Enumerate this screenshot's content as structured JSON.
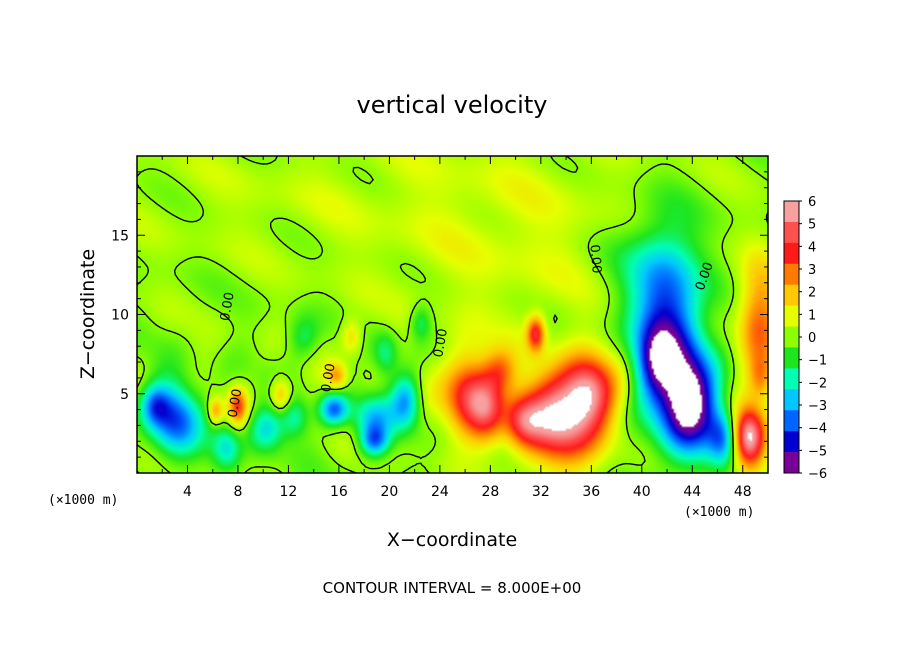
{
  "chart_data": {
    "type": "heatmap",
    "title": "vertical velocity",
    "xlabel": "X−coordinate",
    "ylabel": "Z−coordinate",
    "x_unit": "(×1000 m)",
    "y_unit": "(×1000 m)",
    "footer": "CONTOUR INTERVAL = 8.000E+00",
    "xlim": [
      0,
      50
    ],
    "ylim": [
      0,
      20
    ],
    "x_ticks": [
      4,
      8,
      12,
      16,
      20,
      24,
      28,
      32,
      36,
      40,
      44,
      48
    ],
    "y_ticks": [
      5,
      10,
      15
    ],
    "colorbar": {
      "ticks": [
        6,
        5,
        4,
        3,
        2,
        1,
        0,
        -1,
        -2,
        -3,
        -4,
        -5,
        -6
      ],
      "tick_labels": [
        "6",
        "5",
        "4",
        "3",
        "2",
        "1",
        "0",
        "−1",
        "−2",
        "−3",
        "−4",
        "−5",
        "−6"
      ],
      "colors": [
        "#f7a0a0",
        "#ff5050",
        "#ff1a1a",
        "#ff7a00",
        "#ffc800",
        "#e6ff00",
        "#8cff00",
        "#1ee61e",
        "#00ffb4",
        "#00c8ff",
        "#0064ff",
        "#0000d2",
        "#780096"
      ]
    },
    "contour_labels": [
      {
        "text": "0.00",
        "x": 7.2,
        "z": 10.5,
        "angle": -80
      },
      {
        "text": "0.00",
        "x": 7.8,
        "z": 4.4,
        "angle": -80
      },
      {
        "text": "0.00",
        "x": 15.2,
        "z": 6.0,
        "angle": -80
      },
      {
        "text": "0.00",
        "x": 24.1,
        "z": 8.2,
        "angle": -80
      },
      {
        "text": "0.00",
        "x": 36.3,
        "z": 13.5,
        "angle": 85
      },
      {
        "text": "0.00",
        "x": 45.0,
        "z": 12.4,
        "angle": -70
      }
    ],
    "features": [
      {
        "x": 3.0,
        "z": 3.4,
        "sx": 1.4,
        "sz": 1.6,
        "w": -4.2
      },
      {
        "x": 1.4,
        "z": 4.3,
        "sx": 0.8,
        "sz": 0.9,
        "w": -2.5
      },
      {
        "x": 8.0,
        "z": 4.2,
        "sx": 0.5,
        "sz": 0.8,
        "w": 3.2
      },
      {
        "x": 6.2,
        "z": 3.9,
        "sx": 0.4,
        "sz": 0.6,
        "w": 2.5
      },
      {
        "x": 7.1,
        "z": 1.6,
        "sx": 0.8,
        "sz": 1.0,
        "w": -2.3
      },
      {
        "x": 11.4,
        "z": 4.9,
        "sx": 0.6,
        "sz": 0.8,
        "w": 2.6
      },
      {
        "x": 10.2,
        "z": 2.8,
        "sx": 1.0,
        "sz": 1.0,
        "w": -2.5
      },
      {
        "x": 12.5,
        "z": 3.5,
        "sx": 0.8,
        "sz": 0.9,
        "w": -2.0
      },
      {
        "x": 15.6,
        "z": 4.0,
        "sx": 0.8,
        "sz": 0.7,
        "w": -3.8
      },
      {
        "x": 15.8,
        "z": 6.1,
        "sx": 0.6,
        "sz": 0.6,
        "w": 2.5
      },
      {
        "x": 18.7,
        "z": 3.5,
        "sx": 1.2,
        "sz": 1.0,
        "w": -2.6
      },
      {
        "x": 18.8,
        "z": 2.0,
        "sx": 0.8,
        "sz": 0.7,
        "w": -3.5
      },
      {
        "x": 21.3,
        "z": 4.6,
        "sx": 0.8,
        "sz": 1.2,
        "w": -3.2
      },
      {
        "x": 19.7,
        "z": 7.5,
        "sx": 0.7,
        "sz": 1.0,
        "w": -1.9
      },
      {
        "x": 17.0,
        "z": 8.6,
        "sx": 0.6,
        "sz": 0.8,
        "w": 1.8
      },
      {
        "x": 13.2,
        "z": 8.5,
        "sx": 0.9,
        "sz": 1.0,
        "w": -1.5
      },
      {
        "x": 22.5,
        "z": 9.5,
        "sx": 0.6,
        "sz": 0.8,
        "w": -1.6
      },
      {
        "x": 26.2,
        "z": 5.0,
        "sx": 1.3,
        "sz": 1.8,
        "w": 4.4
      },
      {
        "x": 27.8,
        "z": 4.0,
        "sx": 1.0,
        "sz": 1.6,
        "w": 3.2
      },
      {
        "x": 28.8,
        "z": 6.5,
        "sx": 0.9,
        "sz": 0.9,
        "w": 2.0
      },
      {
        "x": 31.6,
        "z": 8.8,
        "sx": 0.5,
        "sz": 0.8,
        "w": 4.0
      },
      {
        "x": 33.6,
        "z": 3.5,
        "sx": 2.4,
        "sz": 2.0,
        "w": 6.2
      },
      {
        "x": 35.8,
        "z": 5.3,
        "sx": 1.4,
        "sz": 1.5,
        "w": 4.2
      },
      {
        "x": 30.5,
        "z": 3.3,
        "sx": 1.0,
        "sz": 1.1,
        "w": 2.5
      },
      {
        "x": 42.0,
        "z": 8.6,
        "sx": 1.9,
        "sz": 3.8,
        "w": -5.2
      },
      {
        "x": 43.9,
        "z": 4.4,
        "sx": 1.6,
        "sz": 2.2,
        "w": -5.8
      },
      {
        "x": 41.0,
        "z": 7.0,
        "sx": 1.0,
        "sz": 1.5,
        "w": -1.8
      },
      {
        "x": 46.4,
        "z": 2.2,
        "sx": 0.8,
        "sz": 1.2,
        "w": -3.0
      },
      {
        "x": 48.5,
        "z": 2.2,
        "sx": 0.9,
        "sz": 1.3,
        "w": 6.5
      },
      {
        "x": 49.3,
        "z": 9.5,
        "sx": 1.2,
        "sz": 2.6,
        "w": 3.3
      },
      {
        "x": 49.5,
        "z": 6.0,
        "sx": 0.7,
        "sz": 1.0,
        "w": 2.2
      },
      {
        "x": 40.5,
        "z": 13.5,
        "sx": 2.6,
        "sz": 2.5,
        "w": -1.2
      },
      {
        "x": 30.0,
        "z": 15.0,
        "sx": 8.0,
        "sz": 5.0,
        "w": 0.8
      },
      {
        "x": 12.0,
        "z": 17.5,
        "sx": 10.0,
        "sz": 3.0,
        "w": 0.4
      }
    ]
  }
}
